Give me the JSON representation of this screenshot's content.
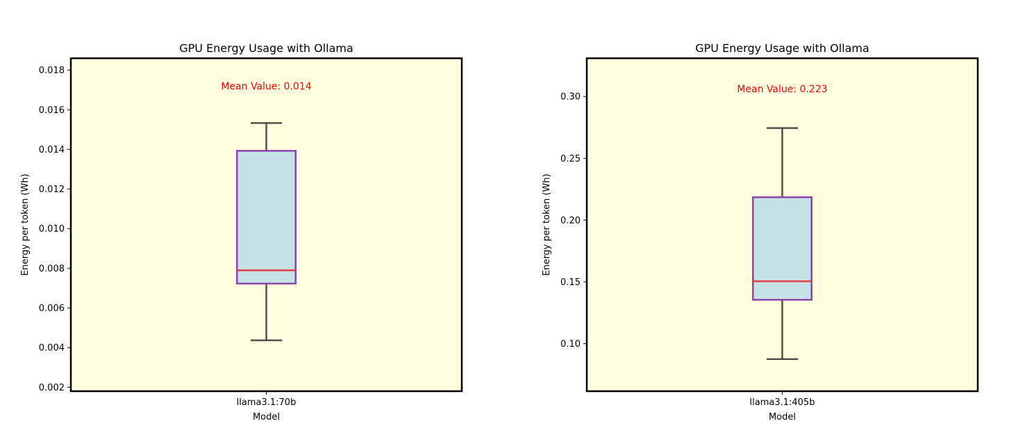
{
  "chart_data": [
    {
      "type": "box",
      "title": "GPU Energy Usage with Ollama",
      "xlabel": "Model",
      "ylabel": "Energy per token (Wh)",
      "categories": [
        "llama3.1:70b"
      ],
      "ylim": [
        0.0018,
        0.0186
      ],
      "yticks": [
        0.002,
        0.004,
        0.006,
        0.008,
        0.01,
        0.012,
        0.014,
        0.016,
        0.018
      ],
      "ytick_labels": [
        "0.002",
        "0.004",
        "0.006",
        "0.008",
        "0.010",
        "0.012",
        "0.014",
        "0.016",
        "0.018"
      ],
      "box": {
        "whisker_low": 0.00437,
        "q1": 0.00723,
        "median": 0.0079,
        "q3": 0.01393,
        "whisker_high": 0.01533
      },
      "annotation": "Mean Value: 0.014",
      "grid": false
    },
    {
      "type": "box",
      "title": "GPU Energy Usage with Ollama",
      "xlabel": "Model",
      "ylabel": "Energy per token (Wh)",
      "categories": [
        "llama3.1:405b"
      ],
      "ylim": [
        0.0615,
        0.331
      ],
      "yticks": [
        0.1,
        0.15,
        0.2,
        0.25,
        0.3
      ],
      "ytick_labels": [
        "0.10",
        "0.15",
        "0.20",
        "0.25",
        "0.30"
      ],
      "box": {
        "whisker_low": 0.0875,
        "q1": 0.1355,
        "median": 0.1505,
        "q3": 0.2185,
        "whisker_high": 0.2745
      },
      "annotation": "Mean Value: 0.223",
      "grid": false
    }
  ],
  "colors": {
    "axes_background": "#ffffe0",
    "box_fill": "#c5e2e6",
    "box_edge": "#8e44ad",
    "median_line": "#e23c3c",
    "whisker": "#333333",
    "annotation_text": "#ff0000"
  }
}
